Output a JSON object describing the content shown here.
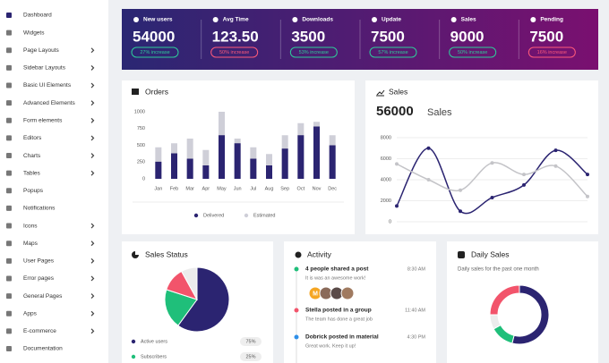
{
  "sidebar": {
    "items": [
      {
        "label": "Dashboard",
        "has_submenu": false
      },
      {
        "label": "Widgets",
        "has_submenu": false
      },
      {
        "label": "Page Layouts",
        "has_submenu": true
      },
      {
        "label": "Sidebar Layouts",
        "has_submenu": true
      },
      {
        "label": "Basic UI Elements",
        "has_submenu": true
      },
      {
        "label": "Advanced Elements",
        "has_submenu": true
      },
      {
        "label": "Form elements",
        "has_submenu": true
      },
      {
        "label": "Editors",
        "has_submenu": true
      },
      {
        "label": "Charts",
        "has_submenu": true
      },
      {
        "label": "Tables",
        "has_submenu": true
      },
      {
        "label": "Popups",
        "has_submenu": false
      },
      {
        "label": "Notifications",
        "has_submenu": false
      },
      {
        "label": "Icons",
        "has_submenu": true
      },
      {
        "label": "Maps",
        "has_submenu": true
      },
      {
        "label": "User Pages",
        "has_submenu": true
      },
      {
        "label": "Error pages",
        "has_submenu": true
      },
      {
        "label": "General Pages",
        "has_submenu": true
      },
      {
        "label": "Apps",
        "has_submenu": true
      },
      {
        "label": "E-commerce",
        "has_submenu": true
      },
      {
        "label": "Documentation",
        "has_submenu": false
      }
    ]
  },
  "stats": [
    {
      "label": "New users",
      "value": "54000",
      "badge": "27% increase",
      "badge_color": "#2ecc9a"
    },
    {
      "label": "Avg Time",
      "value": "123.50",
      "badge": "50% increase",
      "badge_color": "#ff5a7a"
    },
    {
      "label": "Downloads",
      "value": "3500",
      "badge": "53% increase",
      "badge_color": "#2ecc9a"
    },
    {
      "label": "Update",
      "value": "7500",
      "badge": "57% increase",
      "badge_color": "#2ecc9a"
    },
    {
      "label": "Sales",
      "value": "9000",
      "badge": "50% increase",
      "badge_color": "#2ecc9a"
    },
    {
      "label": "Pending",
      "value": "7500",
      "badge": "16% increase",
      "badge_color": "#ff5a7a"
    }
  ],
  "orders": {
    "title": "Orders",
    "chart_data": {
      "type": "bar",
      "categories": [
        "Jan",
        "Feb",
        "Mar",
        "Apr",
        "May",
        "Jun",
        "Jul",
        "Aug",
        "Sep",
        "Oct",
        "Nov",
        "Dec"
      ],
      "series": [
        {
          "name": "Delivered",
          "color": "#2b2471",
          "values": [
            255,
            380,
            300,
            200,
            650,
            530,
            300,
            200,
            450,
            650,
            780,
            500
          ]
        },
        {
          "name": "Estimated",
          "color": "#cfcfd8",
          "values": [
            470,
            530,
            600,
            430,
            1000,
            600,
            470,
            370,
            650,
            830,
            850,
            650
          ]
        }
      ],
      "ylim": [
        0,
        1000
      ],
      "yticks": [
        0,
        250,
        500,
        750,
        1000
      ],
      "grid": false
    }
  },
  "sales": {
    "title": "Sales",
    "total": "56000",
    "total_label": "Sales",
    "chart_data": {
      "type": "line",
      "categories": [
        null,
        null,
        null,
        null,
        null,
        null,
        null
      ],
      "series": [
        {
          "color": "#2b2471",
          "values": [
            1500,
            7000,
            1000,
            2300,
            3500,
            6800,
            4500
          ]
        },
        {
          "color": "#c4c4c8",
          "values": [
            5500,
            4000,
            3000,
            5600,
            4500,
            5300,
            2400
          ]
        }
      ],
      "ylim": [
        0,
        8000
      ],
      "yticks": [
        0,
        2000,
        4000,
        6000,
        8000
      ],
      "grid": true
    }
  },
  "sales_status": {
    "title": "Sales Status",
    "chart_data": {
      "type": "pie",
      "values": [
        60,
        20,
        12,
        8
      ],
      "colors": [
        "#2b2471",
        "#1fbf7a",
        "#f2546b",
        "#ececec"
      ]
    },
    "legend": [
      {
        "label": "Active users",
        "value": "75%",
        "color": "#2b2471"
      },
      {
        "label": "Subscribers",
        "value": "25%",
        "color": "#1fbf7a"
      }
    ]
  },
  "activity": {
    "title": "Activity",
    "items": [
      {
        "title": "4 people shared a post",
        "text": "It is was an awesome work!",
        "time": "8:30 AM",
        "color": "#1fbf7a",
        "avatar": "M"
      },
      {
        "title": "Stella posted in a group",
        "text": "The team has done a great job",
        "time": "11:40 AM",
        "color": "#f2546b"
      },
      {
        "title": "Dobrick posted in material",
        "text": "Great work. Keep it up!",
        "time": "4:30 PM",
        "color": "#2f8fe8"
      }
    ]
  },
  "daily_sales": {
    "title": "Daily Sales",
    "subtitle": "Daily sales for the past one month",
    "chart_data": {
      "type": "donut",
      "values": [
        54,
        13,
        8,
        25
      ],
      "colors": [
        "#2b2471",
        "#1fbf7a",
        "#ececec",
        "#f2546b"
      ]
    }
  }
}
